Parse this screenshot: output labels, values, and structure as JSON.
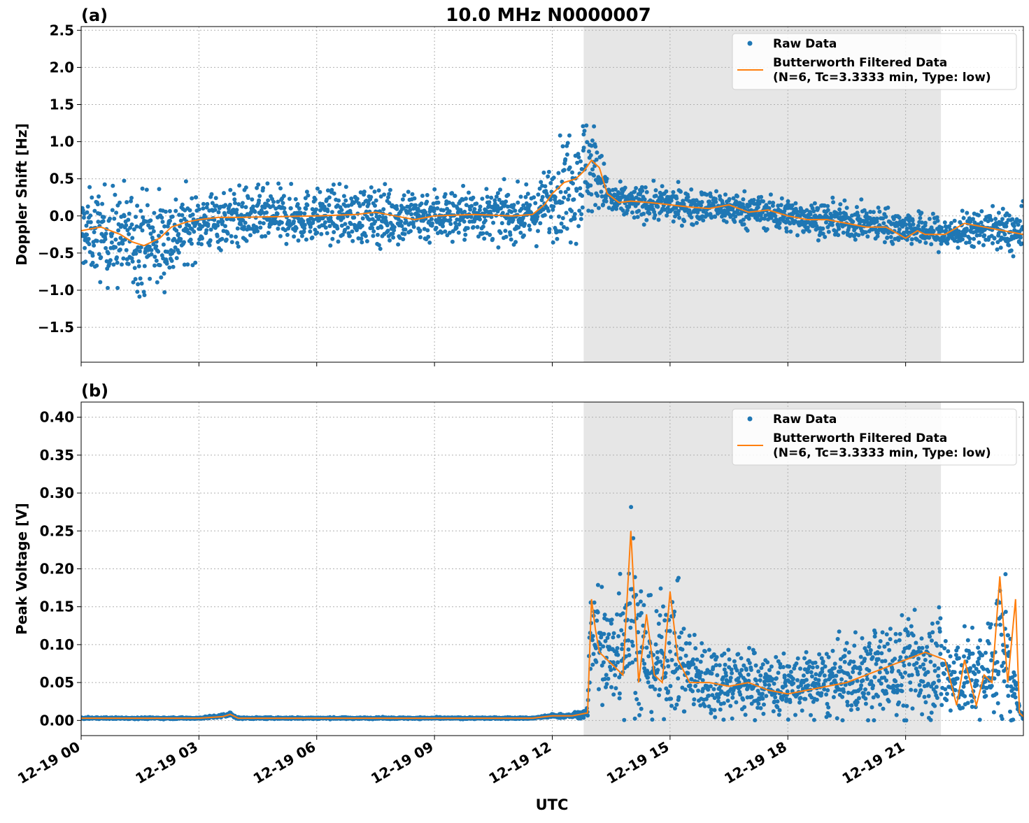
{
  "figure": {
    "title": "10.0 MHz N0000007",
    "xlabel": "UTC"
  },
  "colors": {
    "raw": "#1f77b4",
    "filtered": "#ff7f0e",
    "shade": "#e6e6e6",
    "grid": "#b0b0b0"
  },
  "legend": {
    "raw_label": "Raw Data",
    "filtered_label_line1": "Butterworth Filtered Data",
    "filtered_label_line2": "(N=6, Tc=3.3333 min, Type: low)",
    "placement": "upper-right"
  },
  "shaded_interval_hours": [
    12.8,
    21.9
  ],
  "chart_data": [
    {
      "type": "scatter",
      "panel_label": "(a)",
      "ylabel": "Doppler Shift [Hz]",
      "xlim_hours": [
        0,
        24
      ],
      "ylim": [
        -1.97,
        2.55
      ],
      "x_ticks": [
        "12-19 00",
        "12-19 03",
        "12-19 06",
        "12-19 09",
        "12-19 12",
        "12-19 15",
        "12-19 18",
        "12-19 21"
      ],
      "y_ticks": [
        -1.5,
        -1.0,
        -0.5,
        0.0,
        0.5,
        1.0,
        1.5,
        2.0,
        2.5
      ],
      "y_tick_labels": [
        "−1.5",
        "−1.0",
        "−0.5",
        "0.0",
        "0.5",
        "1.0",
        "1.5",
        "2.0",
        "2.5"
      ],
      "grid": true,
      "filtered_series": {
        "x_hours": [
          0,
          0.5,
          1,
          1.3,
          1.6,
          2,
          2.3,
          2.7,
          3,
          3.5,
          4,
          5,
          6,
          7,
          7.5,
          8,
          8.5,
          9,
          10,
          11,
          11.5,
          11.8,
          12,
          12.3,
          12.6,
          12.8,
          13.0,
          13.2,
          13.4,
          13.7,
          14,
          14.5,
          15,
          15.5,
          16,
          16.5,
          17,
          17.5,
          18,
          18.5,
          19,
          19.5,
          20,
          20.5,
          21,
          21.3,
          21.5,
          22,
          22.5,
          23,
          23.5,
          24
        ],
        "y": [
          -0.2,
          -0.15,
          -0.25,
          -0.35,
          -0.4,
          -0.3,
          -0.15,
          -0.08,
          -0.05,
          -0.02,
          -0.02,
          -0.01,
          0.0,
          0.02,
          0.05,
          0.0,
          -0.05,
          0.0,
          0.02,
          0.0,
          0.02,
          0.15,
          0.3,
          0.45,
          0.5,
          0.6,
          0.75,
          0.65,
          0.3,
          0.18,
          0.2,
          0.18,
          0.15,
          0.12,
          0.1,
          0.15,
          0.05,
          0.08,
          0.0,
          -0.05,
          -0.05,
          -0.1,
          -0.15,
          -0.15,
          -0.3,
          -0.2,
          -0.25,
          -0.25,
          -0.1,
          -0.15,
          -0.2,
          -0.25
        ]
      },
      "raw_envelope": {
        "x_hours": [
          0,
          1,
          2,
          3,
          4,
          6,
          8,
          10,
          11.5,
          12,
          12.5,
          12.8,
          13,
          13.3,
          13.5,
          14,
          15,
          16,
          17,
          18,
          19,
          20,
          21,
          22,
          23,
          24
        ],
        "center": [
          -0.2,
          -0.3,
          -0.35,
          -0.08,
          -0.02,
          0.0,
          0.0,
          0.02,
          0.0,
          0.25,
          0.5,
          0.6,
          0.7,
          0.4,
          0.2,
          0.18,
          0.15,
          0.12,
          0.08,
          0.0,
          -0.05,
          -0.1,
          -0.15,
          -0.25,
          -0.15,
          -0.25
        ],
        "spread": [
          0.45,
          0.6,
          0.6,
          0.35,
          0.35,
          0.3,
          0.35,
          0.3,
          0.3,
          0.45,
          0.7,
          0.7,
          0.6,
          0.3,
          0.2,
          0.2,
          0.2,
          0.2,
          0.2,
          0.2,
          0.2,
          0.2,
          0.2,
          0.2,
          0.2,
          0.3
        ]
      }
    },
    {
      "type": "scatter",
      "panel_label": "(b)",
      "ylabel": "Peak Voltage [V]",
      "xlim_hours": [
        0,
        24
      ],
      "ylim": [
        -0.02,
        0.42
      ],
      "x_ticks": [
        "12-19 00",
        "12-19 03",
        "12-19 06",
        "12-19 09",
        "12-19 12",
        "12-19 15",
        "12-19 18",
        "12-19 21"
      ],
      "y_ticks": [
        0.0,
        0.05,
        0.1,
        0.15,
        0.2,
        0.25,
        0.3,
        0.35,
        0.4
      ],
      "y_tick_labels": [
        "0.00",
        "0.05",
        "0.10",
        "0.15",
        "0.20",
        "0.25",
        "0.30",
        "0.35",
        "0.40"
      ],
      "grid": true,
      "filtered_series": {
        "x_hours": [
          0,
          3,
          3.6,
          3.8,
          4,
          6,
          9,
          11.5,
          12,
          12.5,
          12.9,
          13.0,
          13.1,
          13.2,
          13.4,
          13.6,
          13.8,
          14.0,
          14.2,
          14.4,
          14.6,
          14.8,
          15.0,
          15.2,
          15.5,
          16,
          16.5,
          17,
          17.5,
          18,
          18.5,
          19,
          19.5,
          20,
          20.5,
          21,
          21.5,
          22,
          22.3,
          22.5,
          22.8,
          23,
          23.2,
          23.4,
          23.6,
          23.8,
          23.9,
          24
        ],
        "y": [
          0.003,
          0.003,
          0.005,
          0.008,
          0.003,
          0.003,
          0.003,
          0.003,
          0.006,
          0.006,
          0.01,
          0.16,
          0.12,
          0.09,
          0.08,
          0.07,
          0.06,
          0.25,
          0.05,
          0.14,
          0.06,
          0.05,
          0.17,
          0.08,
          0.05,
          0.05,
          0.045,
          0.05,
          0.04,
          0.035,
          0.04,
          0.045,
          0.05,
          0.06,
          0.07,
          0.08,
          0.09,
          0.08,
          0.02,
          0.08,
          0.02,
          0.06,
          0.05,
          0.19,
          0.05,
          0.16,
          0.01,
          0.005
        ]
      },
      "raw_envelope": {
        "x_hours": [
          0,
          3,
          3.6,
          3.8,
          4,
          9,
          11.5,
          12,
          12.5,
          12.9,
          13.0,
          13.2,
          13.5,
          14.0,
          14.3,
          14.6,
          15.0,
          15.5,
          16,
          17,
          18,
          19,
          20,
          21,
          21.8,
          22.2,
          22.5,
          23,
          23.5,
          23.9,
          24
        ],
        "center": [
          0.003,
          0.003,
          0.006,
          0.008,
          0.003,
          0.003,
          0.003,
          0.006,
          0.006,
          0.01,
          0.14,
          0.1,
          0.08,
          0.15,
          0.09,
          0.07,
          0.1,
          0.06,
          0.055,
          0.05,
          0.045,
          0.05,
          0.06,
          0.07,
          0.08,
          0.05,
          0.06,
          0.06,
          0.1,
          0.01,
          0.005
        ],
        "spread": [
          0.001,
          0.001,
          0.002,
          0.003,
          0.001,
          0.001,
          0.001,
          0.002,
          0.003,
          0.005,
          0.09,
          0.08,
          0.07,
          0.12,
          0.08,
          0.06,
          0.08,
          0.05,
          0.045,
          0.04,
          0.035,
          0.04,
          0.05,
          0.06,
          0.07,
          0.05,
          0.05,
          0.05,
          0.1,
          0.005,
          0.002
        ]
      }
    }
  ]
}
